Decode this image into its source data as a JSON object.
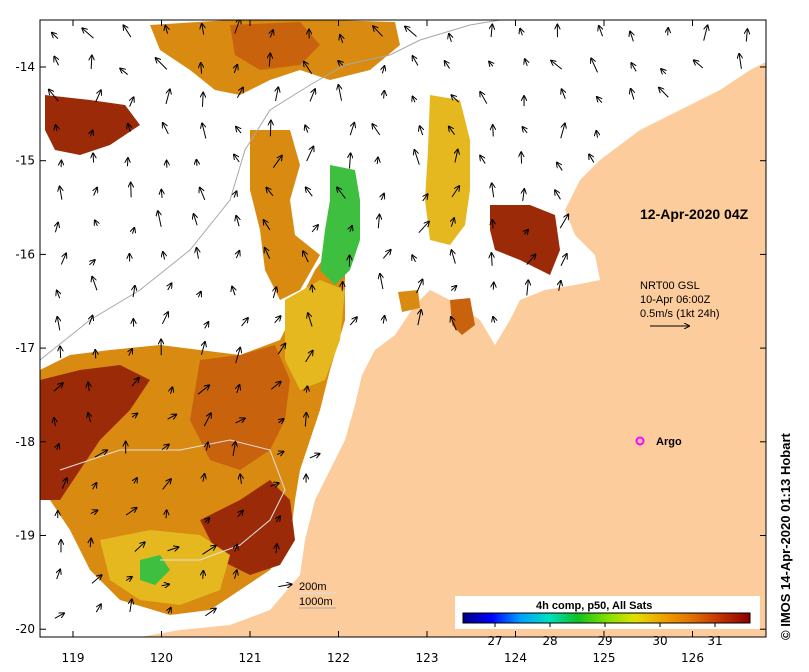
{
  "map": {
    "date_label": "12-Apr-2020 04Z",
    "current_info": {
      "line1": "NRT00 GSL",
      "line2": "10-Apr 06:00Z",
      "line3": "0.5m/s (1kt 24h)"
    },
    "argo_label": "Argo",
    "depth_legend": [
      "200m",
      "1000m"
    ],
    "credit": "IMOS 14-Apr-2020 01:13 Hobart",
    "credit_symbol": "©",
    "colorbar": {
      "title": "4h comp, p50, All Sats",
      "ticks": [
        "27",
        "28",
        "29",
        "30",
        "31"
      ],
      "colors": [
        "#00007f",
        "#0000ff",
        "#00a0ff",
        "#00e0c0",
        "#10c020",
        "#80e000",
        "#e0e000",
        "#f0a000",
        "#e07000",
        "#c03000",
        "#8b0000"
      ]
    },
    "lon_ticks": [
      "119",
      "120",
      "121",
      "122",
      "123",
      "124",
      "125",
      "126"
    ],
    "lat_ticks": [
      "-14",
      "-15",
      "-16",
      "-17",
      "-18",
      "-19",
      "-20"
    ],
    "colors": {
      "land": "#fccc9c",
      "sst_dark": "#9b2a08",
      "sst_mid": "#c8620c",
      "sst_orange": "#d98a10",
      "sst_yellow": "#e6b820",
      "sst_green": "#3fbf3f",
      "argo": "#ff00ff"
    }
  }
}
